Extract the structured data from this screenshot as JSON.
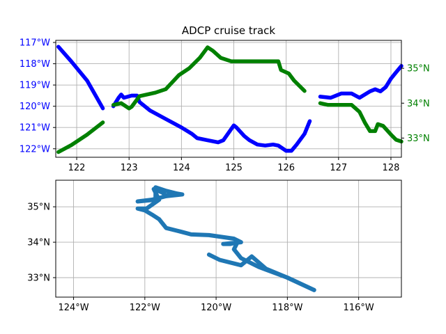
{
  "chart_data": [
    {
      "type": "line",
      "title": "ADCP cruise track",
      "xlabel": "",
      "xlim": [
        121.6,
        128.2
      ],
      "xticks": [
        "122",
        "123",
        "124",
        "125",
        "126",
        "127",
        "128"
      ],
      "grid": true,
      "left_axis": {
        "label": "",
        "color": "#0000ff",
        "ylim": [
          -122.4,
          -116.9
        ],
        "inverted": true,
        "ticks": [
          {
            "v": -117,
            "label": "117°W"
          },
          {
            "v": -118,
            "label": "118°W"
          },
          {
            "v": -119,
            "label": "119°W"
          },
          {
            "v": -120,
            "label": "120°W"
          },
          {
            "v": -121,
            "label": "121°W"
          },
          {
            "v": -122,
            "label": "122°W"
          }
        ]
      },
      "right_axis": {
        "label": "",
        "color": "#008000",
        "ylim": [
          32.45,
          35.8
        ],
        "ticks": [
          {
            "v": 33,
            "label": "33°N"
          },
          {
            "v": 34,
            "label": "34°N"
          },
          {
            "v": 35,
            "label": "35°N"
          }
        ]
      },
      "series": [
        {
          "axis": "left",
          "color": "#0000ff",
          "segments": [
            [
              [
                121.65,
                -117.2
              ],
              [
                121.9,
                -117.9
              ],
              [
                122.2,
                -118.8
              ],
              [
                122.5,
                -120.1
              ]
            ],
            [
              [
                122.7,
                -120.0
              ],
              [
                122.8,
                -119.6
              ],
              [
                122.85,
                -119.45
              ],
              [
                122.9,
                -119.6
              ],
              [
                123.05,
                -119.5
              ],
              [
                123.15,
                -119.5
              ],
              [
                123.2,
                -119.8
              ],
              [
                123.4,
                -120.2
              ],
              [
                123.7,
                -120.6
              ],
              [
                124.0,
                -121.0
              ],
              [
                124.2,
                -121.3
              ],
              [
                124.3,
                -121.5
              ],
              [
                124.5,
                -121.6
              ],
              [
                124.7,
                -121.7
              ],
              [
                124.8,
                -121.6
              ],
              [
                125.0,
                -120.9
              ],
              [
                125.05,
                -121.0
              ],
              [
                125.2,
                -121.4
              ],
              [
                125.3,
                -121.6
              ],
              [
                125.45,
                -121.8
              ],
              [
                125.6,
                -121.85
              ],
              [
                125.75,
                -121.8
              ],
              [
                125.85,
                -121.85
              ],
              [
                126.0,
                -122.1
              ],
              [
                126.1,
                -122.1
              ],
              [
                126.2,
                -121.8
              ],
              [
                126.35,
                -121.3
              ],
              [
                126.45,
                -120.7
              ]
            ],
            [
              [
                126.65,
                -119.55
              ],
              [
                126.85,
                -119.6
              ],
              [
                126.95,
                -119.5
              ],
              [
                127.05,
                -119.4
              ],
              [
                127.25,
                -119.4
              ],
              [
                127.4,
                -119.6
              ],
              [
                127.6,
                -119.3
              ],
              [
                127.7,
                -119.2
              ],
              [
                127.8,
                -119.3
              ],
              [
                127.9,
                -119.1
              ],
              [
                128.0,
                -118.7
              ],
              [
                128.1,
                -118.4
              ],
              [
                128.2,
                -118.1
              ]
            ]
          ]
        },
        {
          "axis": "right",
          "color": "#008000",
          "segments": [
            [
              [
                121.65,
                32.6
              ],
              [
                121.9,
                32.8
              ],
              [
                122.2,
                33.1
              ],
              [
                122.5,
                33.45
              ]
            ],
            [
              [
                122.7,
                33.95
              ],
              [
                122.85,
                34.0
              ],
              [
                123.0,
                33.85
              ],
              [
                123.05,
                33.9
              ],
              [
                123.2,
                34.2
              ],
              [
                123.5,
                34.3
              ],
              [
                123.7,
                34.4
              ],
              [
                123.95,
                34.8
              ],
              [
                124.15,
                35.0
              ],
              [
                124.35,
                35.3
              ],
              [
                124.5,
                35.6
              ],
              [
                124.6,
                35.5
              ],
              [
                124.75,
                35.3
              ],
              [
                124.95,
                35.2
              ],
              [
                125.1,
                35.2
              ],
              [
                125.35,
                35.2
              ],
              [
                125.6,
                35.2
              ],
              [
                125.75,
                35.2
              ],
              [
                125.85,
                35.2
              ],
              [
                125.9,
                34.95
              ],
              [
                126.05,
                34.85
              ],
              [
                126.15,
                34.65
              ],
              [
                126.35,
                34.35
              ]
            ],
            [
              [
                126.65,
                34.0
              ],
              [
                126.8,
                33.95
              ],
              [
                127.0,
                33.95
              ],
              [
                127.2,
                33.95
              ],
              [
                127.25,
                33.95
              ],
              [
                127.4,
                33.75
              ],
              [
                127.5,
                33.45
              ],
              [
                127.6,
                33.2
              ],
              [
                127.7,
                33.2
              ],
              [
                127.75,
                33.4
              ],
              [
                127.85,
                33.35
              ],
              [
                128.0,
                33.1
              ],
              [
                128.1,
                32.95
              ],
              [
                128.2,
                32.9
              ]
            ]
          ]
        }
      ]
    },
    {
      "type": "line",
      "title": "",
      "xlabel": "",
      "ylabel": "",
      "xlim": [
        -124.5,
        -114.8
      ],
      "ylim": [
        32.45,
        35.75
      ],
      "grid": true,
      "xticks": [
        {
          "v": -124,
          "label": "124°W"
        },
        {
          "v": -122,
          "label": "122°W"
        },
        {
          "v": -120,
          "label": "120°W"
        },
        {
          "v": -118,
          "label": "118°W"
        },
        {
          "v": -116,
          "label": "116°W"
        }
      ],
      "yticks": [
        {
          "v": 33,
          "label": "33°N"
        },
        {
          "v": 34,
          "label": "34°N"
        },
        {
          "v": 35,
          "label": "35°N"
        }
      ],
      "series": [
        {
          "color": "#1f77b4",
          "points": [
            [
              -117.25,
              32.65
            ],
            [
              -118.0,
              33.0
            ],
            [
              -118.6,
              33.25
            ],
            [
              -119.0,
              33.6
            ],
            [
              -119.3,
              33.35
            ],
            [
              -119.9,
              33.5
            ],
            [
              -120.2,
              33.65
            ]
          ]
        },
        {
          "color": "#1f77b4",
          "points": [
            [
              -117.25,
              32.65
            ],
            [
              -118.0,
              33.0
            ],
            [
              -118.8,
              33.3
            ],
            [
              -119.3,
              33.55
            ],
            [
              -119.5,
              33.8
            ],
            [
              -119.4,
              34.0
            ],
            [
              -119.6,
              33.95
            ],
            [
              -119.8,
              33.95
            ],
            [
              -119.3,
              34.0
            ],
            [
              -119.5,
              34.1
            ],
            [
              -120.2,
              34.2
            ],
            [
              -120.7,
              34.22
            ],
            [
              -121.0,
              34.3
            ],
            [
              -121.4,
              34.4
            ],
            [
              -121.6,
              34.65
            ],
            [
              -121.8,
              34.78
            ],
            [
              -122.0,
              34.9
            ],
            [
              -122.2,
              34.95
            ],
            [
              -121.95,
              34.95
            ],
            [
              -121.6,
              35.2
            ],
            [
              -121.75,
              35.5
            ],
            [
              -121.5,
              35.4
            ],
            [
              -121.4,
              35.3
            ],
            [
              -121.25,
              35.4
            ],
            [
              -120.95,
              35.35
            ],
            [
              -121.4,
              35.3
            ],
            [
              -121.8,
              35.2
            ],
            [
              -122.2,
              35.15
            ],
            [
              -121.7,
              35.2
            ],
            [
              -121.7,
              35.55
            ],
            [
              -121.4,
              35.45
            ],
            [
              -121.0,
              35.35
            ]
          ]
        }
      ]
    }
  ]
}
